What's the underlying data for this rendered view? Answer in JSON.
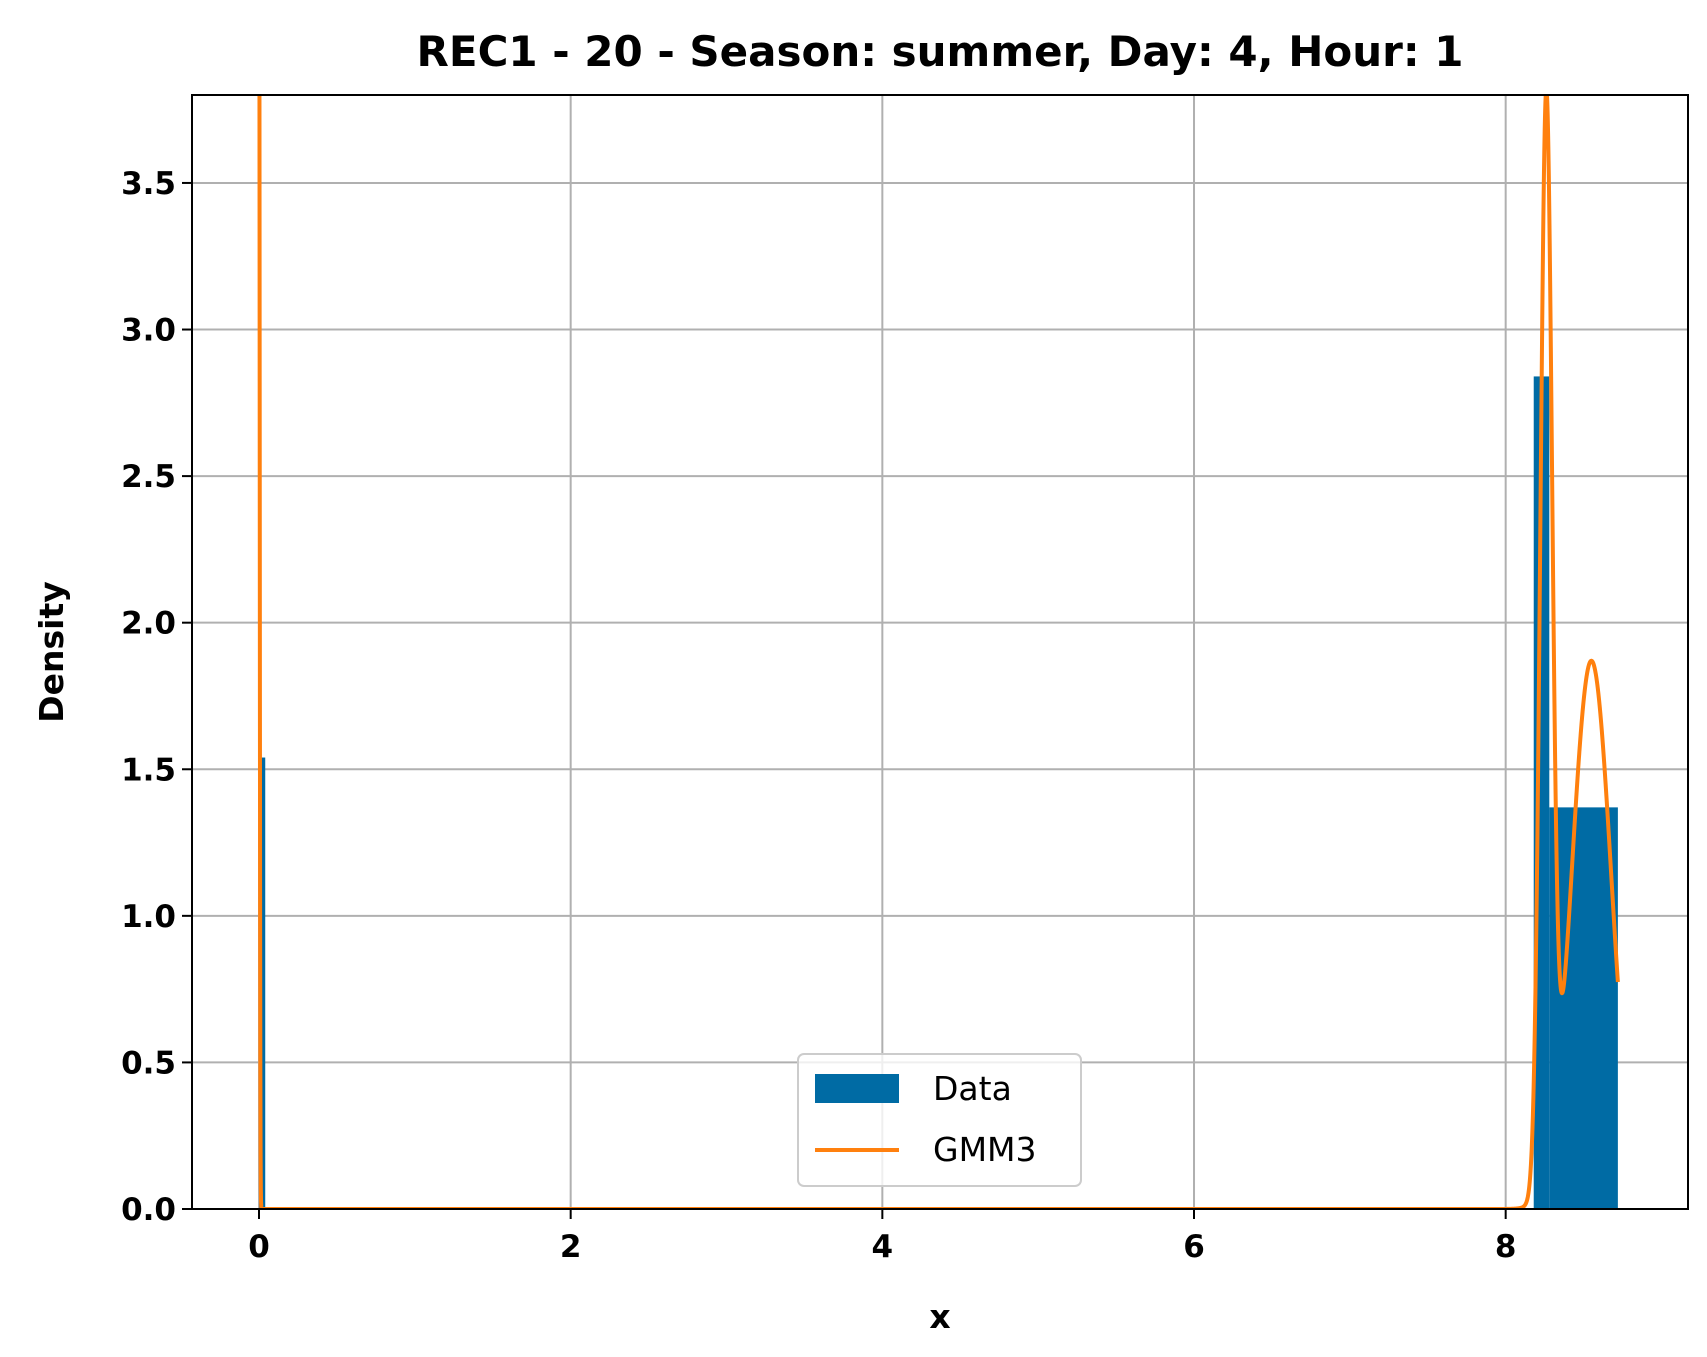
{
  "chart_data": {
    "type": "bar",
    "title": "REC1 - 20 - Season: summer, Day: 4, Hour: 1",
    "xlabel": "x",
    "ylabel": "Density",
    "xlim": [
      -0.43,
      9.17
    ],
    "ylim": [
      0,
      3.8
    ],
    "xticks": [
      0,
      2,
      4,
      6,
      8
    ],
    "xtick_labels": [
      "0",
      "2",
      "4",
      "6",
      "8"
    ],
    "yticks": [
      0.0,
      0.5,
      1.0,
      1.5,
      2.0,
      2.5,
      3.0,
      3.5
    ],
    "ytick_labels": [
      "0.0",
      "0.5",
      "1.0",
      "1.5",
      "2.0",
      "2.5",
      "3.0",
      "3.5"
    ],
    "grid": true,
    "legend_position": "lower center",
    "histogram": {
      "name": "Data",
      "color": "#006BA4",
      "bins": [
        {
          "x0": 0.0,
          "x1": 0.04,
          "density": 1.54
        },
        {
          "x0": 8.18,
          "x1": 8.28,
          "density": 2.84
        },
        {
          "x0": 8.28,
          "x1": 8.72,
          "density": 1.37
        }
      ]
    },
    "curve": {
      "name": "GMM3",
      "color": "#FF800E",
      "components": [
        {
          "weight": 0.05,
          "mean": 0.0,
          "sd": 0.004
        },
        {
          "weight": 0.35,
          "mean": 8.26,
          "sd": 0.038
        },
        {
          "weight": 0.6,
          "mean": 8.55,
          "sd": 0.128
        }
      ],
      "x_range": [
        0.0,
        8.72
      ]
    }
  }
}
